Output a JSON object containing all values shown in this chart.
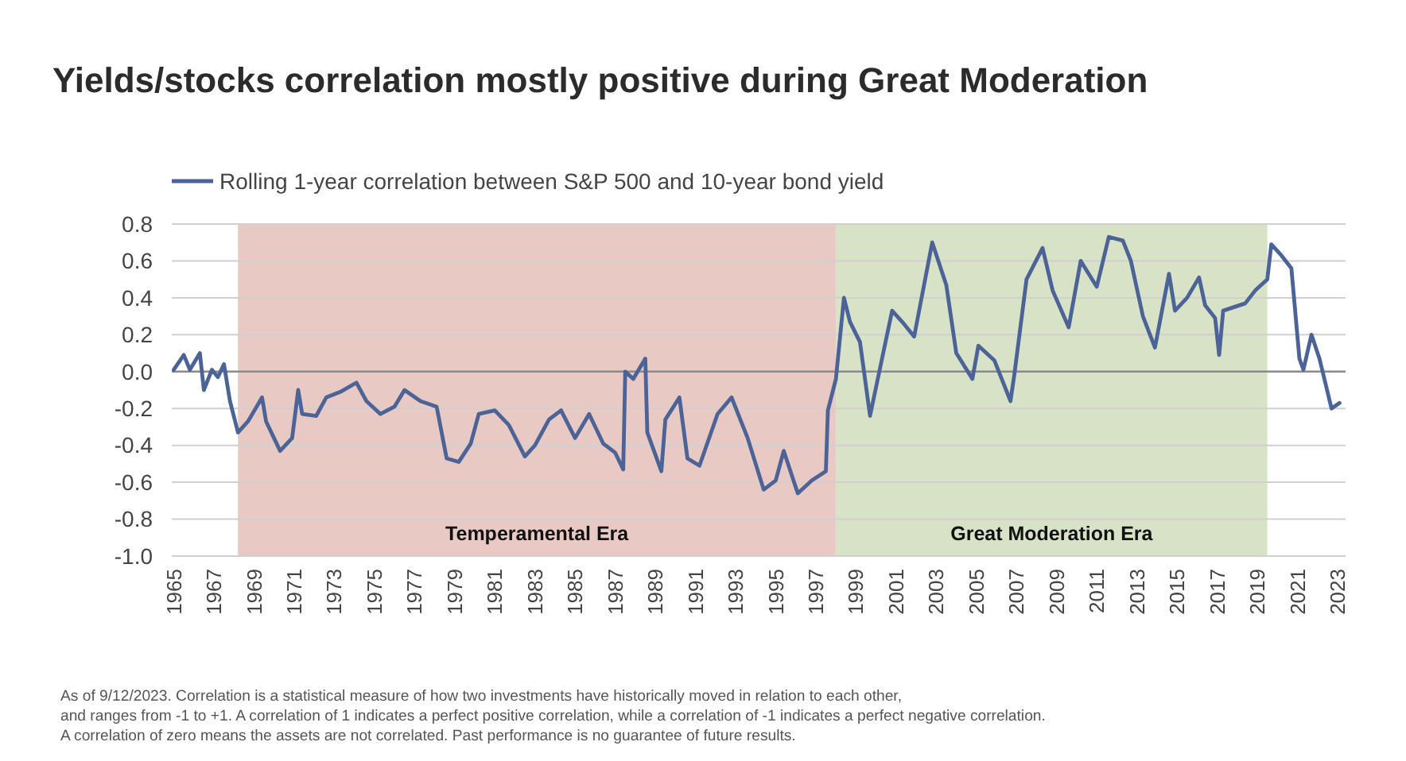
{
  "chart_data": {
    "type": "line",
    "title": "Yields/stocks correlation mostly positive during Great Moderation",
    "series": [
      {
        "name": "Rolling 1-year correlation between S&P 500 and 10-year bond yield",
        "color": "#4b6396",
        "x": [
          1965.0,
          1965.5,
          1965.8,
          1966.3,
          1966.5,
          1966.9,
          1967.2,
          1967.5,
          1967.8,
          1968.2,
          1968.7,
          1969.4,
          1969.6,
          1970.3,
          1970.9,
          1971.2,
          1971.4,
          1972.1,
          1972.6,
          1973.3,
          1974.1,
          1974.6,
          1975.3,
          1976.0,
          1976.5,
          1977.3,
          1978.1,
          1978.6,
          1979.2,
          1979.8,
          1980.2,
          1981.0,
          1981.7,
          1982.5,
          1983.0,
          1983.7,
          1984.3,
          1985.0,
          1985.7,
          1986.4,
          1987.0,
          1987.4,
          1987.5,
          1987.9,
          1988.5,
          1988.6,
          1989.3,
          1989.5,
          1990.2,
          1990.6,
          1991.2,
          1992.1,
          1992.8,
          1993.6,
          1994.4,
          1995.0,
          1995.4,
          1996.1,
          1996.8,
          1997.5,
          1997.6,
          1998.0,
          1998.4,
          1998.7,
          1999.2,
          1999.7,
          2000.8,
          2001.3,
          2001.9,
          2002.8,
          2003.5,
          2004.0,
          2004.8,
          2005.1,
          2005.9,
          2006.7,
          2006.9,
          2007.5,
          2008.3,
          2008.8,
          2009.6,
          2010.2,
          2011.0,
          2011.6,
          2012.3,
          2012.7,
          2013.3,
          2013.9,
          2014.6,
          2014.9,
          2015.5,
          2016.1,
          2016.4,
          2016.9,
          2017.1,
          2017.3,
          2018.4,
          2018.9,
          2019.5,
          2019.7,
          2020.2,
          2020.7,
          2021.1,
          2021.3,
          2021.7,
          2022.1,
          2022.7,
          2023.1
        ],
        "values": [
          0.01,
          0.09,
          0.01,
          0.1,
          -0.1,
          0.01,
          -0.03,
          0.04,
          -0.16,
          -0.33,
          -0.27,
          -0.14,
          -0.27,
          -0.43,
          -0.36,
          -0.1,
          -0.23,
          -0.24,
          -0.14,
          -0.11,
          -0.06,
          -0.16,
          -0.23,
          -0.19,
          -0.1,
          -0.16,
          -0.19,
          -0.47,
          -0.49,
          -0.39,
          -0.23,
          -0.21,
          -0.29,
          -0.46,
          -0.4,
          -0.26,
          -0.21,
          -0.36,
          -0.23,
          -0.39,
          -0.44,
          -0.53,
          0.0,
          -0.04,
          0.07,
          -0.33,
          -0.54,
          -0.26,
          -0.14,
          -0.47,
          -0.51,
          -0.23,
          -0.14,
          -0.36,
          -0.64,
          -0.59,
          -0.43,
          -0.66,
          -0.59,
          -0.54,
          -0.21,
          -0.04,
          0.4,
          0.27,
          0.16,
          -0.24,
          0.33,
          0.27,
          0.19,
          0.7,
          0.47,
          0.1,
          -0.04,
          0.14,
          0.06,
          -0.16,
          -0.01,
          0.5,
          0.67,
          0.44,
          0.24,
          0.6,
          0.46,
          0.73,
          0.71,
          0.6,
          0.3,
          0.13,
          0.53,
          0.33,
          0.4,
          0.51,
          0.36,
          0.29,
          0.09,
          0.33,
          0.37,
          0.44,
          0.5,
          0.69,
          0.63,
          0.56,
          0.07,
          0.01,
          0.2,
          0.07,
          -0.2,
          -0.17
        ]
      }
    ],
    "xlim": [
      1964.9,
      2023.4
    ],
    "xticks": [
      1965,
      1967,
      1969,
      1971,
      1973,
      1975,
      1977,
      1979,
      1981,
      1983,
      1985,
      1987,
      1989,
      1991,
      1993,
      1995,
      1997,
      1999,
      2001,
      2003,
      2005,
      2007,
      2009,
      2011,
      2013,
      2015,
      2017,
      2019,
      2021,
      2023
    ],
    "ylim": [
      -1.0,
      0.8
    ],
    "yticks": [
      {
        "value": -1.0,
        "label": "-1.0"
      },
      {
        "value": -0.8,
        "label": "-0.8"
      },
      {
        "value": -0.6,
        "label": "-0.6"
      },
      {
        "value": -0.4,
        "label": "-0.4"
      },
      {
        "value": -0.2,
        "label": "-0.2"
      },
      {
        "value": 0,
        "label": "0.0"
      },
      {
        "value": 0.2,
        "label": "0.2"
      },
      {
        "value": 0.4,
        "label": "0.4"
      },
      {
        "value": 0.6,
        "label": "0.6"
      },
      {
        "value": 0.8,
        "label": "0.8"
      }
    ],
    "grid": "y",
    "legend": "top left",
    "bands": [
      {
        "axis": "x",
        "from": 1968.2,
        "to": 1998.0,
        "label": "Temperamental Era",
        "color": "#e9c9c4"
      },
      {
        "axis": "x",
        "from": 1998.0,
        "to": 2019.5,
        "label": "Great Moderation Era",
        "color": "#d8e2c6"
      }
    ],
    "annotations": [
      "As of 9/12/2023. Correlation is a statistical measure of how two investments have historically moved in relation to each other,",
      "and ranges from -1 to +1. A correlation of 1 indicates a perfect positive correlation, while a correlation of -1 indicates a perfect negative correlation.",
      "A correlation of zero means the assets are not correlated. Past performance is no guarantee of future results."
    ]
  }
}
